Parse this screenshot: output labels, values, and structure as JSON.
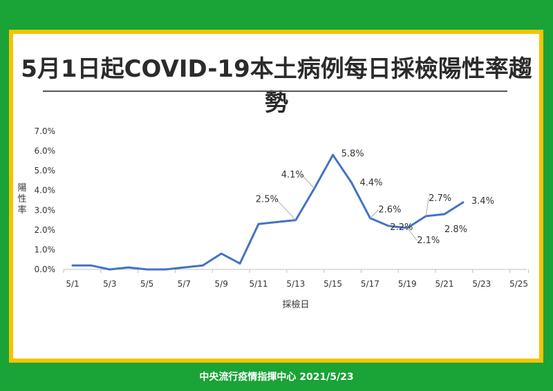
{
  "title": "5月1日起COVID-19本土病例每日採檢陽性率趨勢",
  "footer": "中央流行疫情指揮中心  2021/5/23",
  "colors": {
    "line": "#4472c4",
    "background": "#1aa336",
    "border": "#f5c400"
  },
  "chart_data": {
    "type": "line",
    "xlabel": "採檢日",
    "ylabel": "陽性率",
    "ylim": [
      0,
      7.0
    ],
    "yticks": [
      "0.0%",
      "1.0%",
      "2.0%",
      "3.0%",
      "4.0%",
      "5.0%",
      "6.0%",
      "7.0%"
    ],
    "xticks": [
      "5/1",
      "5/3",
      "5/5",
      "5/7",
      "5/9",
      "5/11",
      "5/13",
      "5/15",
      "5/17",
      "5/19",
      "5/21",
      "5/23",
      "5/25"
    ],
    "grid": false,
    "series": [
      {
        "x": [
          "5/1",
          "5/2",
          "5/3",
          "5/4",
          "5/5",
          "5/6",
          "5/7",
          "5/8",
          "5/9",
          "5/10",
          "5/11",
          "5/12",
          "5/13",
          "5/14",
          "5/15",
          "5/16",
          "5/17",
          "5/18",
          "5/19",
          "5/20",
          "5/21",
          "5/22"
        ],
        "values": [
          0.2,
          0.2,
          0.0,
          0.1,
          0.0,
          0.0,
          0.1,
          0.2,
          0.8,
          0.3,
          2.3,
          2.4,
          2.5,
          4.1,
          5.8,
          4.4,
          2.6,
          2.2,
          2.1,
          2.7,
          2.8,
          3.4
        ]
      }
    ],
    "annotations": [
      {
        "label": "2.5%",
        "x": "5/13"
      },
      {
        "label": "4.1%",
        "x": "5/14"
      },
      {
        "label": "5.8%",
        "x": "5/15"
      },
      {
        "label": "4.4%",
        "x": "5/16"
      },
      {
        "label": "2.6%",
        "x": "5/17"
      },
      {
        "label": "2.2%",
        "x": "5/18"
      },
      {
        "label": "2.1%",
        "x": "5/19"
      },
      {
        "label": "2.7%",
        "x": "5/20"
      },
      {
        "label": "2.8%",
        "x": "5/21"
      },
      {
        "label": "3.4%",
        "x": "5/22"
      }
    ]
  }
}
